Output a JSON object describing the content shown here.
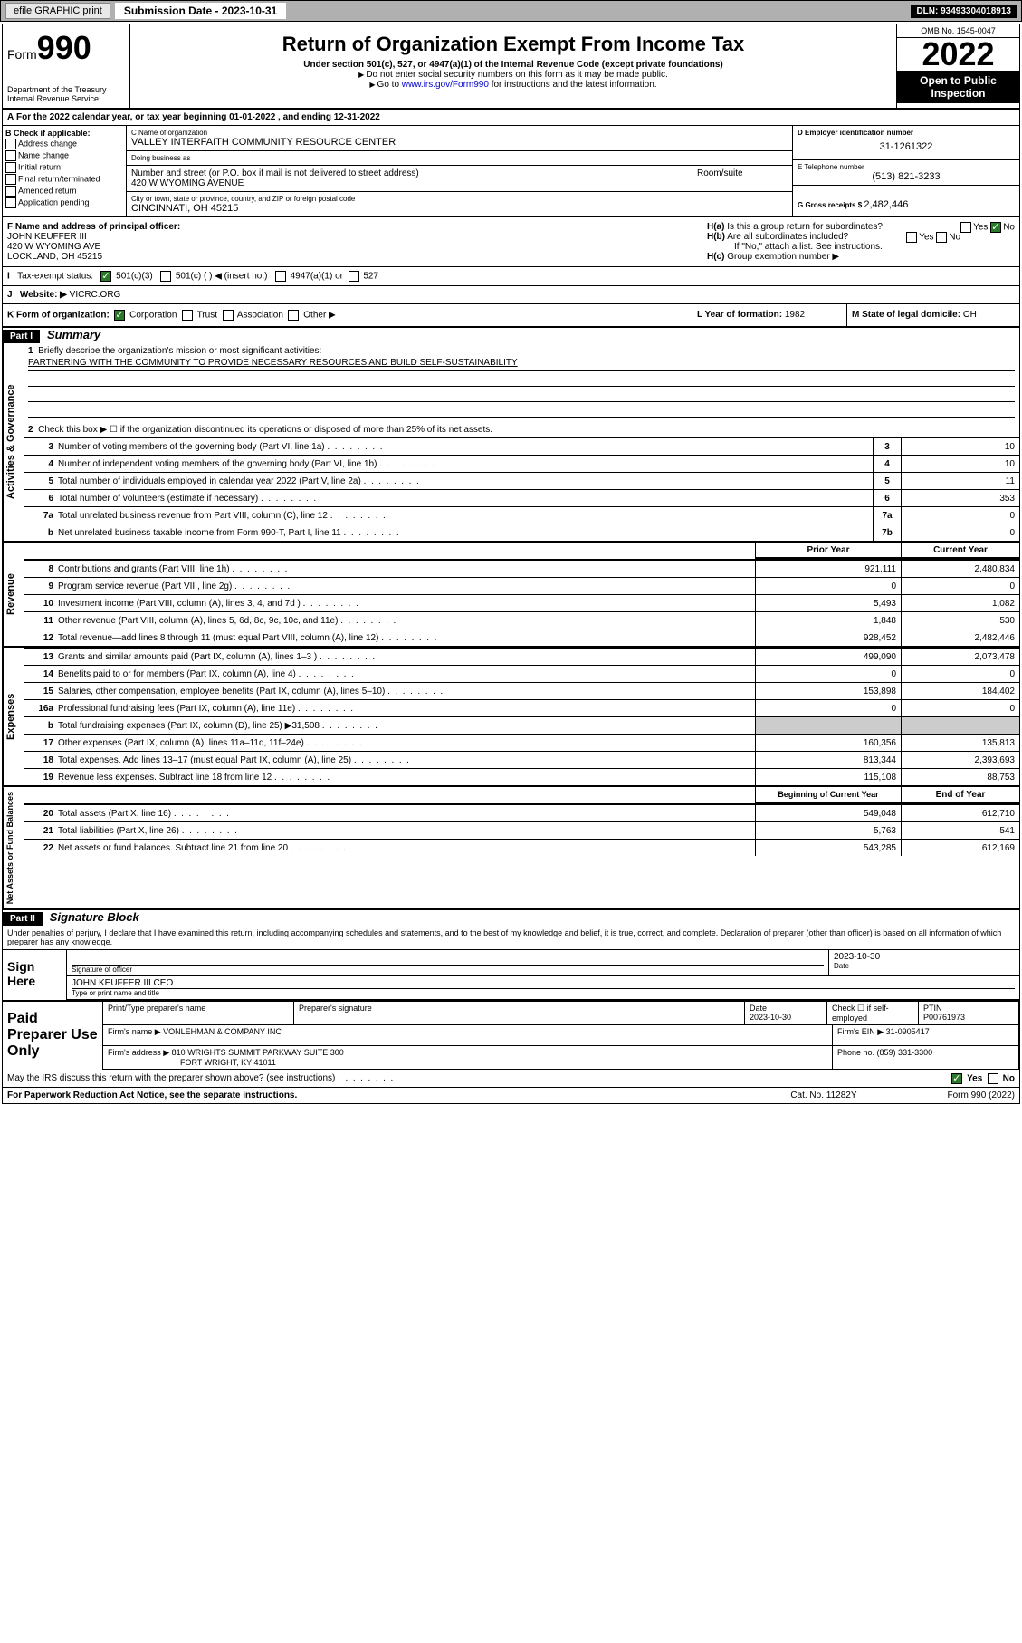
{
  "topbar": {
    "efile": "efile GRAPHIC print",
    "subdate_lbl": "Submission Date - ",
    "subdate": "2023-10-31",
    "dln_lbl": "DLN: ",
    "dln": "93493304018913"
  },
  "header": {
    "form_word": "Form",
    "form_num": "990",
    "title": "Return of Organization Exempt From Income Tax",
    "sub1": "Under section 501(c), 527, or 4947(a)(1) of the Internal Revenue Code (except private foundations)",
    "sub2": "Do not enter social security numbers on this form as it may be made public.",
    "sub3_pre": "Go to ",
    "sub3_link": "www.irs.gov/Form990",
    "sub3_post": " for instructions and the latest information.",
    "dept": "Department of the Treasury",
    "irs": "Internal Revenue Service",
    "omb": "OMB No. 1545-0047",
    "year": "2022",
    "open": "Open to Public Inspection"
  },
  "A": {
    "line": "For the 2022 calendar year, or tax year beginning 01-01-2022    , and ending 12-31-2022"
  },
  "B": {
    "hdr": "B Check if applicable:",
    "opts": [
      "Address change",
      "Name change",
      "Initial return",
      "Final return/terminated",
      "Amended return",
      "Application pending"
    ]
  },
  "C": {
    "name_lbl": "C Name of organization",
    "name": "VALLEY INTERFAITH COMMUNITY RESOURCE CENTER",
    "dba_lbl": "Doing business as",
    "dba": "",
    "street_lbl": "Number and street (or P.O. box if mail is not delivered to street address)",
    "street": "420 W WYOMING AVENUE",
    "room_lbl": "Room/suite",
    "room": "",
    "city_lbl": "City or town, state or province, country, and ZIP or foreign postal code",
    "city": "CINCINNATI, OH  45215"
  },
  "D": {
    "lbl": "D Employer identification number",
    "val": "31-1261322"
  },
  "E": {
    "lbl": "E Telephone number",
    "val": "(513) 821-3233"
  },
  "G": {
    "lbl": "G Gross receipts $ ",
    "val": "2,482,446"
  },
  "F": {
    "lbl": "F  Name and address of principal officer:",
    "name": "JOHN KEUFFER III",
    "addr1": "420 W WYOMING AVE",
    "addr2": "LOCKLAND, OH  45215"
  },
  "H": {
    "a": "Is this a group return for subordinates?",
    "a_no": "No",
    "a_yes": "Yes",
    "b": "Are all subordinates included?",
    "b_yes": "Yes",
    "b_no": "No",
    "b_note": "If \"No,\" attach a list. See instructions.",
    "c": "Group exemption number ▶"
  },
  "I": {
    "lbl": "Tax-exempt status:",
    "c3": "501(c)(3)",
    "c": "501(c) (  ) ◀ (insert no.)",
    "a1": "4947(a)(1) or",
    "527": "527"
  },
  "J": {
    "lbl": "Website: ▶",
    "val": "VICRC.ORG"
  },
  "K": {
    "lbl": "K Form of organization:",
    "corp": "Corporation",
    "trust": "Trust",
    "assoc": "Association",
    "other": "Other ▶"
  },
  "L": {
    "lbl": "L Year of formation: ",
    "val": "1982"
  },
  "M": {
    "lbl": "M State of legal domicile: ",
    "val": "OH"
  },
  "part1": {
    "hdr": "Part I",
    "title": "Summary"
  },
  "summary": {
    "q1": "Briefly describe the organization's mission or most significant activities:",
    "mission": "PARTNERING WITH THE COMMUNITY TO PROVIDE NECESSARY RESOURCES AND BUILD SELF-SUSTAINABILITY",
    "q2": "Check this box ▶ ☐  if the organization discontinued its operations or disposed of more than 25% of its net assets.",
    "rows_gov": [
      {
        "n": "3",
        "t": "Number of voting members of the governing body (Part VI, line 1a)",
        "box": "3",
        "v": "10"
      },
      {
        "n": "4",
        "t": "Number of independent voting members of the governing body (Part VI, line 1b)",
        "box": "4",
        "v": "10"
      },
      {
        "n": "5",
        "t": "Total number of individuals employed in calendar year 2022 (Part V, line 2a)",
        "box": "5",
        "v": "11"
      },
      {
        "n": "6",
        "t": "Total number of volunteers (estimate if necessary)",
        "box": "6",
        "v": "353"
      },
      {
        "n": "7a",
        "t": "Total unrelated business revenue from Part VIII, column (C), line 12",
        "box": "7a",
        "v": "0"
      },
      {
        "n": "b",
        "t": "Net unrelated business taxable income from Form 990-T, Part I, line 11",
        "box": "7b",
        "v": "0"
      }
    ],
    "hdr_prior": "Prior Year",
    "hdr_curr": "Current Year",
    "rows_rev": [
      {
        "n": "8",
        "t": "Contributions and grants (Part VIII, line 1h)",
        "p": "921,111",
        "c": "2,480,834"
      },
      {
        "n": "9",
        "t": "Program service revenue (Part VIII, line 2g)",
        "p": "0",
        "c": "0"
      },
      {
        "n": "10",
        "t": "Investment income (Part VIII, column (A), lines 3, 4, and 7d )",
        "p": "5,493",
        "c": "1,082"
      },
      {
        "n": "11",
        "t": "Other revenue (Part VIII, column (A), lines 5, 6d, 8c, 9c, 10c, and 11e)",
        "p": "1,848",
        "c": "530"
      },
      {
        "n": "12",
        "t": "Total revenue—add lines 8 through 11 (must equal Part VIII, column (A), line 12)",
        "p": "928,452",
        "c": "2,482,446"
      }
    ],
    "rows_exp": [
      {
        "n": "13",
        "t": "Grants and similar amounts paid (Part IX, column (A), lines 1–3 )",
        "p": "499,090",
        "c": "2,073,478"
      },
      {
        "n": "14",
        "t": "Benefits paid to or for members (Part IX, column (A), line 4)",
        "p": "0",
        "c": "0"
      },
      {
        "n": "15",
        "t": "Salaries, other compensation, employee benefits (Part IX, column (A), lines 5–10)",
        "p": "153,898",
        "c": "184,402"
      },
      {
        "n": "16a",
        "t": "Professional fundraising fees (Part IX, column (A), line 11e)",
        "p": "0",
        "c": "0"
      },
      {
        "n": "b",
        "t": "Total fundraising expenses (Part IX, column (D), line 25) ▶31,508",
        "p": "",
        "c": "",
        "shade": true
      },
      {
        "n": "17",
        "t": "Other expenses (Part IX, column (A), lines 11a–11d, 11f–24e)",
        "p": "160,356",
        "c": "135,813"
      },
      {
        "n": "18",
        "t": "Total expenses. Add lines 13–17 (must equal Part IX, column (A), line 25)",
        "p": "813,344",
        "c": "2,393,693"
      },
      {
        "n": "19",
        "t": "Revenue less expenses. Subtract line 18 from line 12",
        "p": "115,108",
        "c": "88,753"
      }
    ],
    "hdr_beg": "Beginning of Current Year",
    "hdr_end": "End of Year",
    "rows_net": [
      {
        "n": "20",
        "t": "Total assets (Part X, line 16)",
        "p": "549,048",
        "c": "612,710"
      },
      {
        "n": "21",
        "t": "Total liabilities (Part X, line 26)",
        "p": "5,763",
        "c": "541"
      },
      {
        "n": "22",
        "t": "Net assets or fund balances. Subtract line 21 from line 20",
        "p": "543,285",
        "c": "612,169"
      }
    ]
  },
  "vtabs": {
    "gov": "Activities & Governance",
    "rev": "Revenue",
    "exp": "Expenses",
    "net": "Net Assets or Fund Balances"
  },
  "part2": {
    "hdr": "Part II",
    "title": "Signature Block",
    "decl": "Under penalties of perjury, I declare that I have examined this return, including accompanying schedules and statements, and to the best of my knowledge and belief, it is true, correct, and complete. Declaration of preparer (other than officer) is based on all information of which preparer has any knowledge."
  },
  "sign": {
    "here": "Sign Here",
    "sig_lbl": "Signature of officer",
    "date_lbl": "Date",
    "date": "2023-10-30",
    "name": "JOHN KEUFFER III CEO",
    "name_lbl": "Type or print name and title"
  },
  "paid": {
    "hdr": "Paid Preparer Use Only",
    "r1": {
      "c1": "Print/Type preparer's name",
      "c2": "Preparer's signature",
      "c3": "Date",
      "c3v": "2023-10-30",
      "c4": "Check ☐ if self-employed",
      "c5": "PTIN",
      "c5v": "P00761973"
    },
    "r2": {
      "c1": "Firm's name     ▶",
      "c1v": "VONLEHMAN & COMPANY INC",
      "c2": "Firm's EIN ▶",
      "c2v": "31-0905417"
    },
    "r3": {
      "c1": "Firm's address ▶",
      "c1v": "810 WRIGHTS SUMMIT PARKWAY SUITE 300",
      "c1v2": "FORT WRIGHT, KY  41011",
      "c2": "Phone no. ",
      "c2v": "(859) 331-3300"
    }
  },
  "discuss": {
    "txt": "May the IRS discuss this return with the preparer shown above? (see instructions)",
    "yes": "Yes",
    "no": "No"
  },
  "footer": {
    "l": "For Paperwork Reduction Act Notice, see the separate instructions.",
    "m": "Cat. No. 11282Y",
    "r": "Form 990 (2022)"
  }
}
